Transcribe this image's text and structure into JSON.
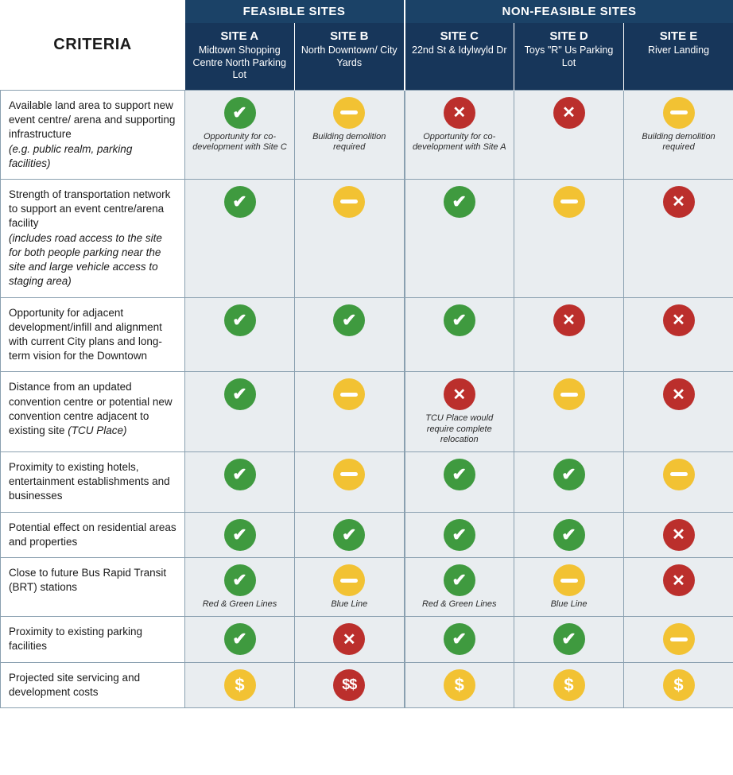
{
  "colors": {
    "header_bg_top": "#1b4267",
    "header_bg_site": "#17365a",
    "cell_bg": "#e9edf0",
    "border": "#8aa0b0",
    "green": "#3f9a3f",
    "yellow": "#f2c233",
    "red": "#bb2f2c"
  },
  "headings": {
    "criteria": "CRITERIA",
    "feasible": "FEASIBLE SITES",
    "nonfeasible": "NON-FEASIBLE SITES"
  },
  "sites": [
    {
      "name": "SITE A",
      "sub": "Midtown Shopping Centre North Parking Lot"
    },
    {
      "name": "SITE B",
      "sub": "North Downtown/ City Yards"
    },
    {
      "name": "SITE C",
      "sub": "22nd St & Idylwyld Dr"
    },
    {
      "name": "SITE D",
      "sub": "Toys \"R\" Us Parking Lot"
    },
    {
      "name": "SITE E",
      "sub": "River Landing"
    }
  ],
  "rows": [
    {
      "label": "Available land area to support new event centre/ arena and supporting infrastructure",
      "sub": "(e.g. public realm, parking facilities)",
      "cells": [
        {
          "icon": "check",
          "note": "Opportunity for co-development with Site C"
        },
        {
          "icon": "dash",
          "note": "Building demolition required"
        },
        {
          "icon": "cross",
          "note": "Opportunity for co-development with Site A"
        },
        {
          "icon": "cross",
          "note": ""
        },
        {
          "icon": "dash",
          "note": "Building demolition required"
        }
      ]
    },
    {
      "label": "Strength of transportation network to support an event centre/arena facility",
      "sub": "(includes road access to the site for both people parking near the site and large vehicle access to staging area)",
      "cells": [
        {
          "icon": "check",
          "note": ""
        },
        {
          "icon": "dash",
          "note": ""
        },
        {
          "icon": "check",
          "note": ""
        },
        {
          "icon": "dash",
          "note": ""
        },
        {
          "icon": "cross",
          "note": ""
        }
      ]
    },
    {
      "label": "Opportunity for adjacent development/infill and alignment with current City plans and long-term vision for the Downtown",
      "sub": "",
      "cells": [
        {
          "icon": "check",
          "note": ""
        },
        {
          "icon": "check",
          "note": ""
        },
        {
          "icon": "check",
          "note": ""
        },
        {
          "icon": "cross",
          "note": ""
        },
        {
          "icon": "cross",
          "note": ""
        }
      ]
    },
    {
      "label": "Distance from an updated convention centre or potential new convention centre adjacent to existing site ",
      "sub": "(TCU Place)",
      "inline_sub": true,
      "cells": [
        {
          "icon": "check",
          "note": ""
        },
        {
          "icon": "dash",
          "note": ""
        },
        {
          "icon": "cross",
          "note": "TCU Place would require complete relocation"
        },
        {
          "icon": "dash",
          "note": ""
        },
        {
          "icon": "cross",
          "note": ""
        }
      ]
    },
    {
      "label": "Proximity to existing hotels, entertainment establishments and businesses",
      "sub": "",
      "cells": [
        {
          "icon": "check",
          "note": ""
        },
        {
          "icon": "dash",
          "note": ""
        },
        {
          "icon": "check",
          "note": ""
        },
        {
          "icon": "check",
          "note": ""
        },
        {
          "icon": "dash",
          "note": ""
        }
      ]
    },
    {
      "label": "Potential effect on residential areas and properties",
      "sub": "",
      "cells": [
        {
          "icon": "check",
          "note": ""
        },
        {
          "icon": "check",
          "note": ""
        },
        {
          "icon": "check",
          "note": ""
        },
        {
          "icon": "check",
          "note": ""
        },
        {
          "icon": "cross",
          "note": ""
        }
      ]
    },
    {
      "label": "Close to future Bus Rapid Transit (BRT) stations",
      "sub": "",
      "cells": [
        {
          "icon": "check",
          "note": "Red & Green Lines"
        },
        {
          "icon": "dash",
          "note": "Blue Line"
        },
        {
          "icon": "check",
          "note": "Red & Green Lines"
        },
        {
          "icon": "dash",
          "note": "Blue Line"
        },
        {
          "icon": "cross",
          "note": ""
        }
      ]
    },
    {
      "label": "Proximity to existing parking facilities",
      "sub": "",
      "cells": [
        {
          "icon": "check",
          "note": ""
        },
        {
          "icon": "cross",
          "note": ""
        },
        {
          "icon": "check",
          "note": ""
        },
        {
          "icon": "check",
          "note": ""
        },
        {
          "icon": "dash",
          "note": ""
        }
      ]
    },
    {
      "label": "Projected site servicing and development costs",
      "sub": "",
      "cells": [
        {
          "icon": "dollar1",
          "note": ""
        },
        {
          "icon": "dollar2",
          "note": ""
        },
        {
          "icon": "dollar1",
          "note": ""
        },
        {
          "icon": "dollar1",
          "note": ""
        },
        {
          "icon": "dollar1",
          "note": ""
        }
      ]
    }
  ]
}
